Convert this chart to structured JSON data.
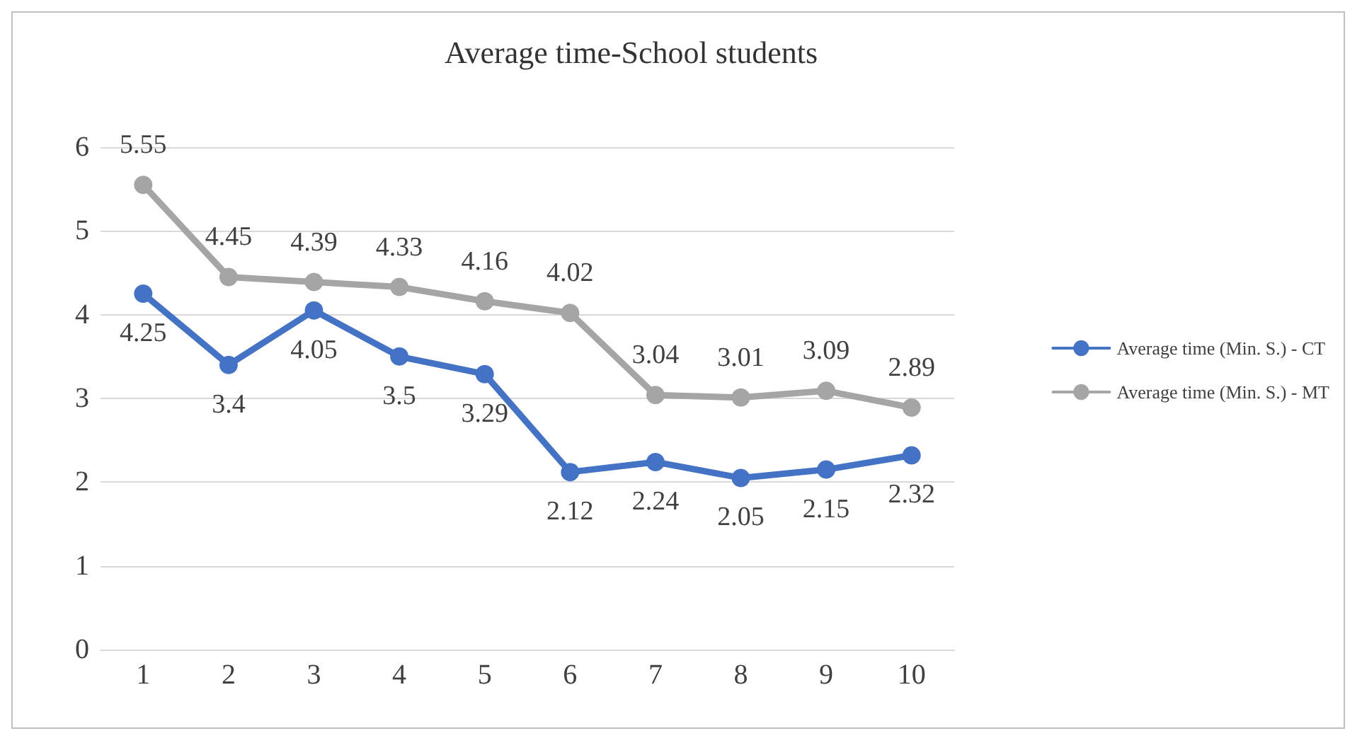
{
  "chart_data": {
    "type": "line",
    "title": "Average time-School students",
    "categories": [
      "1",
      "2",
      "3",
      "4",
      "5",
      "6",
      "7",
      "8",
      "9",
      "10"
    ],
    "series": [
      {
        "name": "Average time (Min. S.) - CT",
        "color": "#4472c4",
        "values": [
          4.25,
          3.4,
          4.05,
          3.5,
          3.29,
          2.12,
          2.24,
          2.05,
          2.15,
          2.32
        ]
      },
      {
        "name": "Average time (Min. S.) - MT",
        "color": "#a5a5a5",
        "values": [
          5.55,
          4.45,
          4.39,
          4.33,
          4.16,
          4.02,
          3.04,
          3.01,
          3.09,
          2.89
        ]
      }
    ],
    "ylim": [
      0,
      6
    ],
    "yticks": [
      0,
      1,
      2,
      3,
      4,
      5,
      6
    ],
    "grid": "y",
    "legend": "right",
    "marker": "circle",
    "line_style": "solid",
    "data_labels": true
  }
}
